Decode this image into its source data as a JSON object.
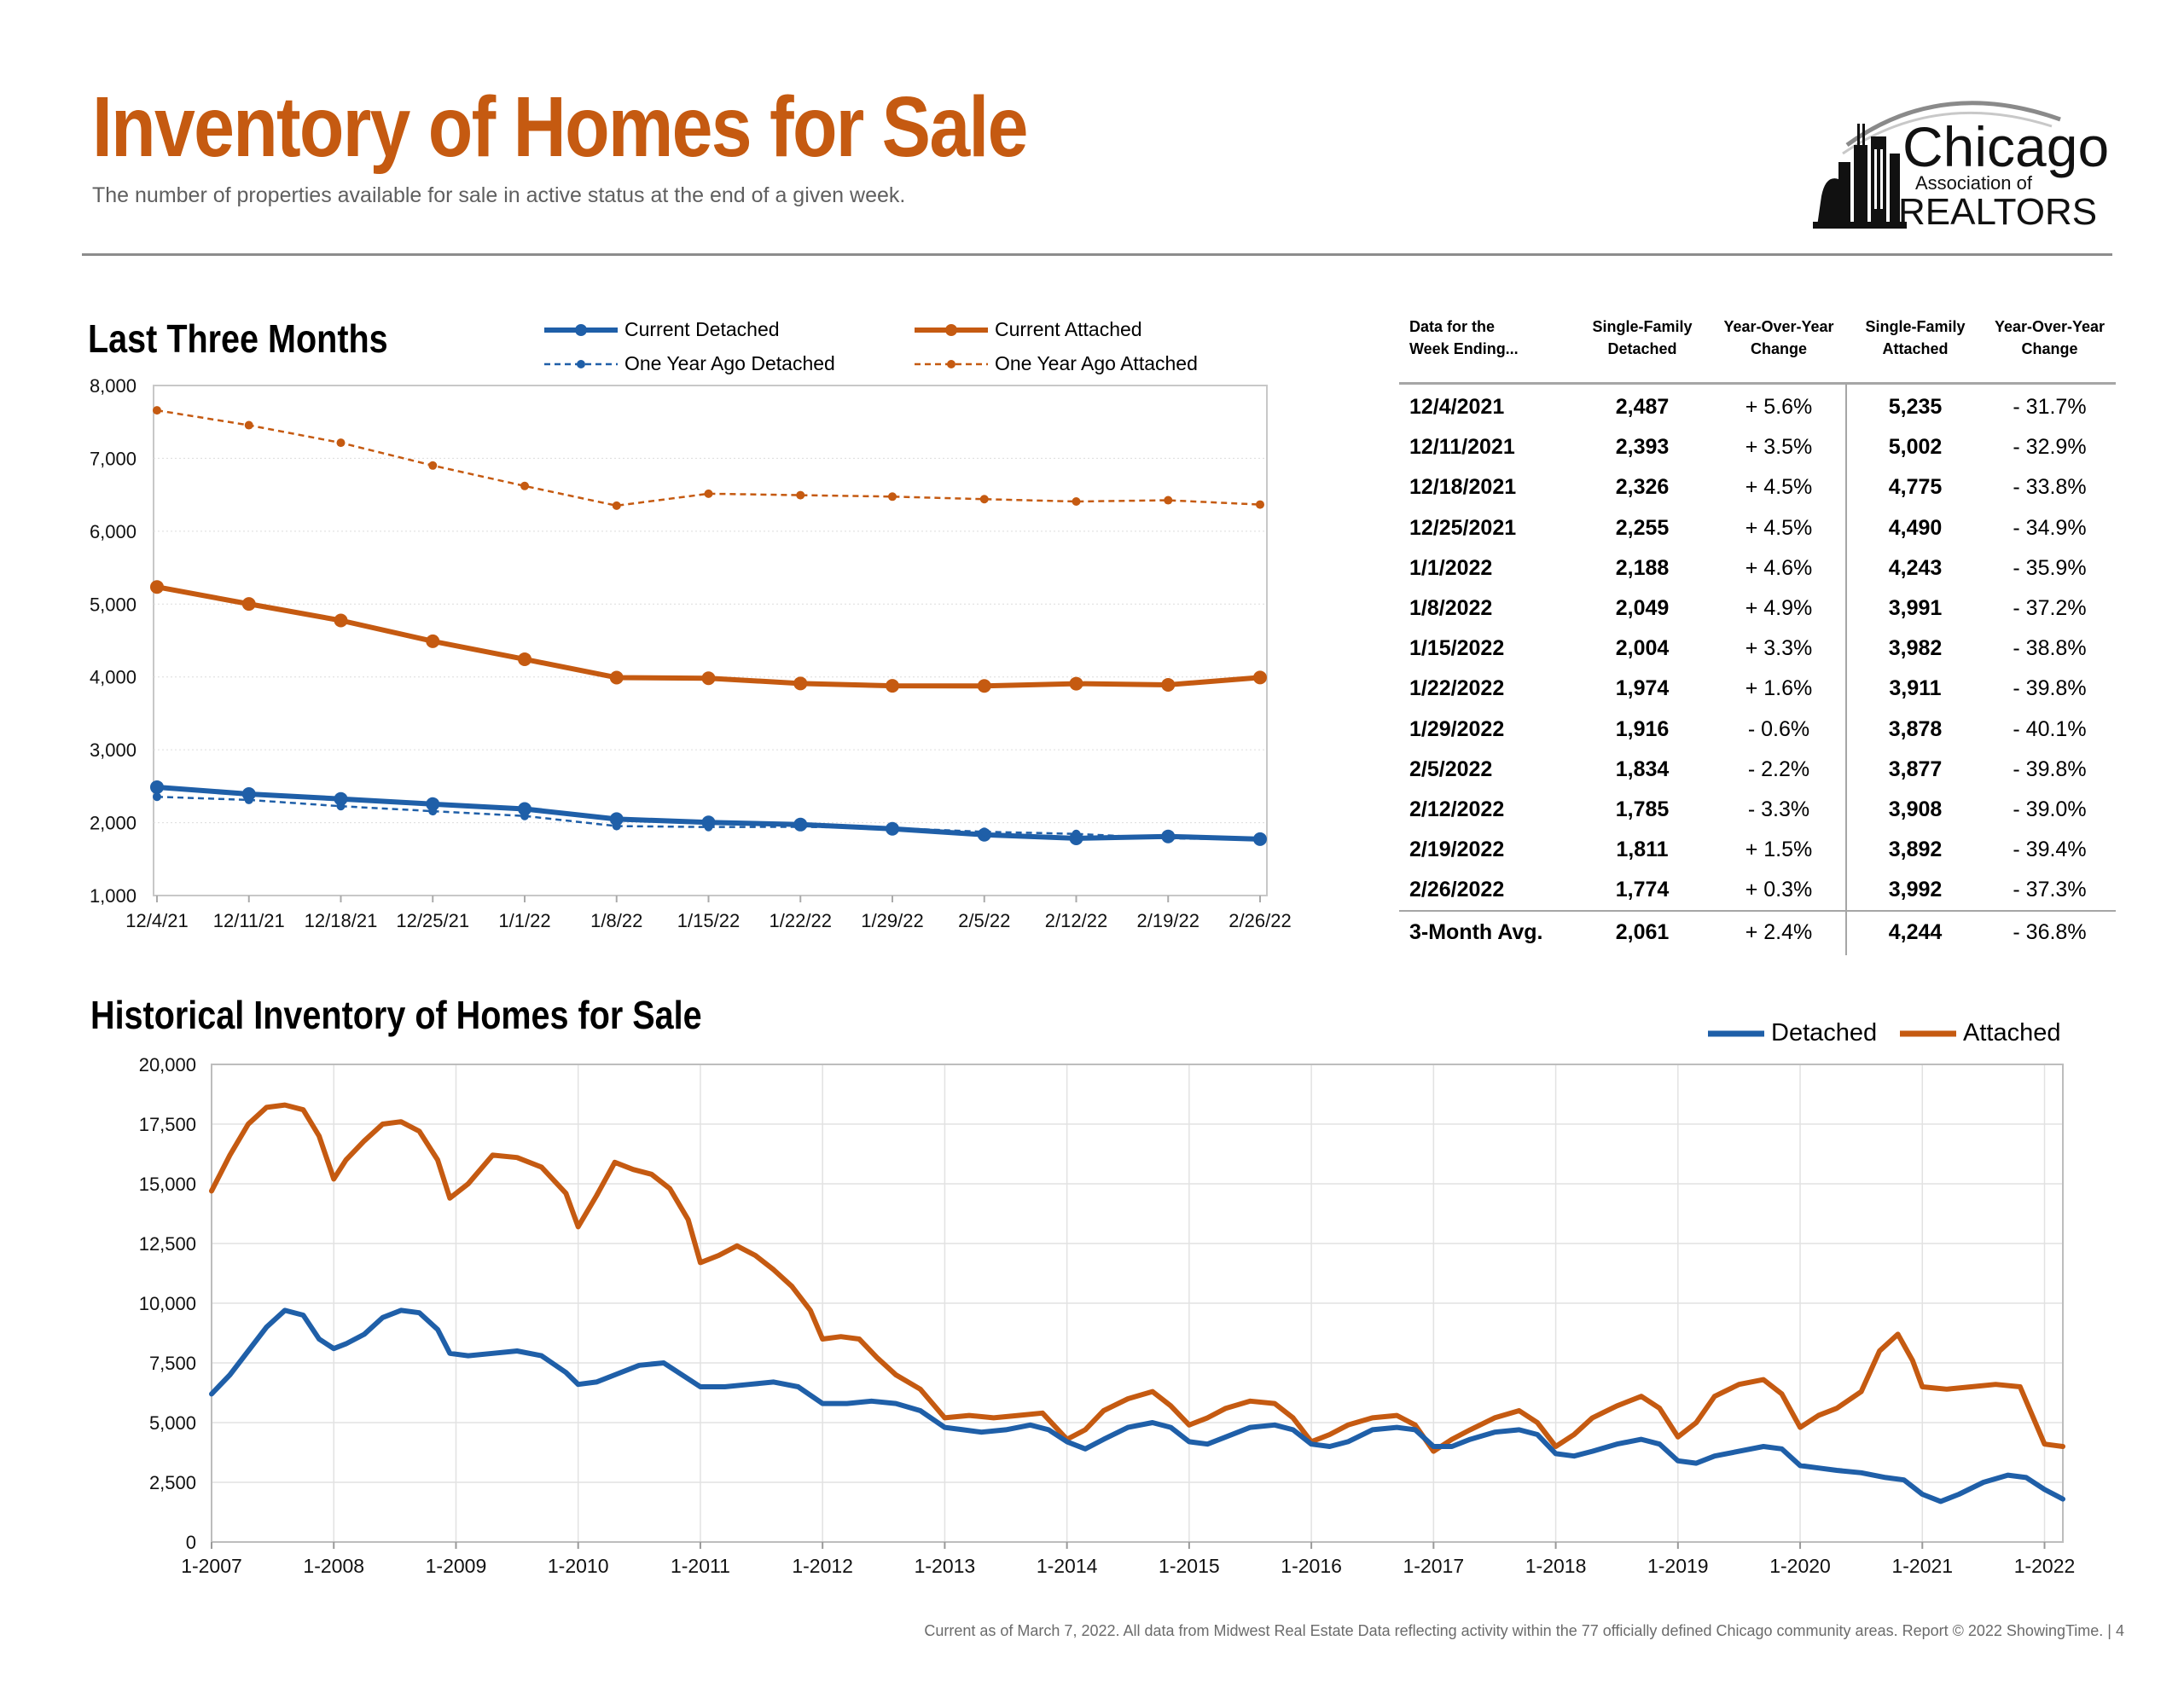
{
  "header": {
    "title": "Inventory of Homes for Sale",
    "subtitle": "The number of properties available for sale in active status at the end of a given week."
  },
  "logo": {
    "name": "Chicago Association of REALTORS",
    "text_main": "Chicago",
    "text_sub": "Association of",
    "text_bottom": "REALTORS"
  },
  "colors": {
    "attached": "#c55a11",
    "detached": "#1f5fa8",
    "title": "#c55a11"
  },
  "charts": {
    "last_three_heading": "Last Three Months",
    "historical_heading": "Historical Inventory of Homes for Sale"
  },
  "chart_data": [
    {
      "type": "line",
      "title": "Last Three Months",
      "categories": [
        "12/4/21",
        "12/11/21",
        "12/18/21",
        "12/25/21",
        "1/1/22",
        "1/8/22",
        "1/15/22",
        "1/22/22",
        "1/29/22",
        "2/5/22",
        "2/12/22",
        "2/19/22",
        "2/26/22"
      ],
      "ylim": [
        1000,
        8000
      ],
      "yticks": [
        "1,000",
        "2,000",
        "3,000",
        "4,000",
        "5,000",
        "6,000",
        "7,000",
        "8,000"
      ],
      "grid": true,
      "legend": "top",
      "series": [
        {
          "name": "Current Detached",
          "style": "solid",
          "color": "#1f5fa8",
          "values": [
            2487,
            2393,
            2326,
            2255,
            2188,
            2049,
            2004,
            1974,
            1916,
            1834,
            1785,
            1811,
            1774
          ]
        },
        {
          "name": "Current Attached",
          "style": "solid",
          "color": "#c55a11",
          "values": [
            5235,
            5002,
            4775,
            4490,
            4243,
            3991,
            3982,
            3911,
            3878,
            3877,
            3908,
            3892,
            3992
          ]
        },
        {
          "name": "One Year Ago Detached",
          "style": "dashed",
          "color": "#1f5fa8",
          "values": [
            2355,
            2312,
            2226,
            2158,
            2092,
            1953,
            1940,
            1943,
            1926,
            1875,
            1846,
            1784,
            1769
          ]
        },
        {
          "name": "One Year Ago Attached",
          "style": "dashed",
          "color": "#c55a11",
          "values": [
            7659,
            7455,
            7214,
            6902,
            6621,
            6351,
            6515,
            6495,
            6475,
            6440,
            6408,
            6425,
            6366
          ]
        }
      ]
    },
    {
      "type": "line",
      "title": "Historical Inventory of Homes for Sale",
      "xticks": [
        "1-2007",
        "1-2008",
        "1-2009",
        "1-2010",
        "1-2011",
        "1-2012",
        "1-2013",
        "1-2014",
        "1-2015",
        "1-2016",
        "1-2017",
        "1-2018",
        "1-2019",
        "1-2020",
        "1-2021",
        "1-2022"
      ],
      "xrange": [
        2007.0,
        2022.15
      ],
      "ylim": [
        0,
        20000
      ],
      "yticks": [
        "0",
        "2,500",
        "5,000",
        "7,500",
        "10,000",
        "12,500",
        "15,000",
        "17,500",
        "20,000"
      ],
      "grid": true,
      "legend": "top-right",
      "series": [
        {
          "name": "Detached",
          "color": "#1f5fa8",
          "points": [
            [
              2007.0,
              6200
            ],
            [
              2007.15,
              7000
            ],
            [
              2007.3,
              8000
            ],
            [
              2007.45,
              9000
            ],
            [
              2007.6,
              9700
            ],
            [
              2007.75,
              9500
            ],
            [
              2007.88,
              8500
            ],
            [
              2008.0,
              8100
            ],
            [
              2008.1,
              8300
            ],
            [
              2008.25,
              8700
            ],
            [
              2008.4,
              9400
            ],
            [
              2008.55,
              9700
            ],
            [
              2008.7,
              9600
            ],
            [
              2008.85,
              8900
            ],
            [
              2008.95,
              7900
            ],
            [
              2009.1,
              7800
            ],
            [
              2009.3,
              7900
            ],
            [
              2009.5,
              8000
            ],
            [
              2009.7,
              7800
            ],
            [
              2009.9,
              7100
            ],
            [
              2010.0,
              6600
            ],
            [
              2010.15,
              6700
            ],
            [
              2010.3,
              7000
            ],
            [
              2010.5,
              7400
            ],
            [
              2010.7,
              7500
            ],
            [
              2010.85,
              7000
            ],
            [
              2011.0,
              6500
            ],
            [
              2011.2,
              6500
            ],
            [
              2011.4,
              6600
            ],
            [
              2011.6,
              6700
            ],
            [
              2011.8,
              6500
            ],
            [
              2012.0,
              5800
            ],
            [
              2012.2,
              5800
            ],
            [
              2012.4,
              5900
            ],
            [
              2012.6,
              5800
            ],
            [
              2012.8,
              5500
            ],
            [
              2013.0,
              4800
            ],
            [
              2013.15,
              4700
            ],
            [
              2013.3,
              4600
            ],
            [
              2013.5,
              4700
            ],
            [
              2013.7,
              4900
            ],
            [
              2013.85,
              4700
            ],
            [
              2014.0,
              4200
            ],
            [
              2014.15,
              3900
            ],
            [
              2014.3,
              4300
            ],
            [
              2014.5,
              4800
            ],
            [
              2014.7,
              5000
            ],
            [
              2014.85,
              4800
            ],
            [
              2015.0,
              4200
            ],
            [
              2015.15,
              4100
            ],
            [
              2015.3,
              4400
            ],
            [
              2015.5,
              4800
            ],
            [
              2015.7,
              4900
            ],
            [
              2015.85,
              4700
            ],
            [
              2016.0,
              4100
            ],
            [
              2016.15,
              4000
            ],
            [
              2016.3,
              4200
            ],
            [
              2016.5,
              4700
            ],
            [
              2016.7,
              4800
            ],
            [
              2016.85,
              4700
            ],
            [
              2017.0,
              4000
            ],
            [
              2017.15,
              4000
            ],
            [
              2017.3,
              4300
            ],
            [
              2017.5,
              4600
            ],
            [
              2017.7,
              4700
            ],
            [
              2017.85,
              4500
            ],
            [
              2018.0,
              3700
            ],
            [
              2018.15,
              3600
            ],
            [
              2018.3,
              3800
            ],
            [
              2018.5,
              4100
            ],
            [
              2018.7,
              4300
            ],
            [
              2018.85,
              4100
            ],
            [
              2019.0,
              3400
            ],
            [
              2019.15,
              3300
            ],
            [
              2019.3,
              3600
            ],
            [
              2019.5,
              3800
            ],
            [
              2019.7,
              4000
            ],
            [
              2019.85,
              3900
            ],
            [
              2020.0,
              3200
            ],
            [
              2020.15,
              3100
            ],
            [
              2020.3,
              3000
            ],
            [
              2020.5,
              2900
            ],
            [
              2020.7,
              2700
            ],
            [
              2020.85,
              2600
            ],
            [
              2021.0,
              2000
            ],
            [
              2021.15,
              1700
            ],
            [
              2021.3,
              2000
            ],
            [
              2021.5,
              2500
            ],
            [
              2021.7,
              2800
            ],
            [
              2021.85,
              2700
            ],
            [
              2022.0,
              2200
            ],
            [
              2022.15,
              1800
            ]
          ]
        },
        {
          "name": "Attached",
          "color": "#c55a11",
          "points": [
            [
              2007.0,
              14700
            ],
            [
              2007.15,
              16200
            ],
            [
              2007.3,
              17500
            ],
            [
              2007.45,
              18200
            ],
            [
              2007.6,
              18300
            ],
            [
              2007.75,
              18100
            ],
            [
              2007.88,
              17000
            ],
            [
              2008.0,
              15200
            ],
            [
              2008.1,
              16000
            ],
            [
              2008.25,
              16800
            ],
            [
              2008.4,
              17500
            ],
            [
              2008.55,
              17600
            ],
            [
              2008.7,
              17200
            ],
            [
              2008.85,
              16000
            ],
            [
              2008.95,
              14400
            ],
            [
              2009.1,
              15000
            ],
            [
              2009.3,
              16200
            ],
            [
              2009.5,
              16100
            ],
            [
              2009.7,
              15700
            ],
            [
              2009.9,
              14600
            ],
            [
              2010.0,
              13200
            ],
            [
              2010.15,
              14500
            ],
            [
              2010.3,
              15900
            ],
            [
              2010.45,
              15600
            ],
            [
              2010.6,
              15400
            ],
            [
              2010.75,
              14800
            ],
            [
              2010.9,
              13500
            ],
            [
              2011.0,
              11700
            ],
            [
              2011.15,
              12000
            ],
            [
              2011.3,
              12400
            ],
            [
              2011.45,
              12000
            ],
            [
              2011.6,
              11400
            ],
            [
              2011.75,
              10700
            ],
            [
              2011.9,
              9700
            ],
            [
              2012.0,
              8500
            ],
            [
              2012.15,
              8600
            ],
            [
              2012.3,
              8500
            ],
            [
              2012.45,
              7700
            ],
            [
              2012.6,
              7000
            ],
            [
              2012.8,
              6400
            ],
            [
              2013.0,
              5200
            ],
            [
              2013.2,
              5300
            ],
            [
              2013.4,
              5200
            ],
            [
              2013.6,
              5300
            ],
            [
              2013.8,
              5400
            ],
            [
              2014.0,
              4300
            ],
            [
              2014.15,
              4700
            ],
            [
              2014.3,
              5500
            ],
            [
              2014.5,
              6000
            ],
            [
              2014.7,
              6300
            ],
            [
              2014.85,
              5700
            ],
            [
              2015.0,
              4900
            ],
            [
              2015.15,
              5200
            ],
            [
              2015.3,
              5600
            ],
            [
              2015.5,
              5900
            ],
            [
              2015.7,
              5800
            ],
            [
              2015.85,
              5200
            ],
            [
              2016.0,
              4200
            ],
            [
              2016.15,
              4500
            ],
            [
              2016.3,
              4900
            ],
            [
              2016.5,
              5200
            ],
            [
              2016.7,
              5300
            ],
            [
              2016.85,
              4900
            ],
            [
              2017.0,
              3800
            ],
            [
              2017.15,
              4300
            ],
            [
              2017.3,
              4700
            ],
            [
              2017.5,
              5200
            ],
            [
              2017.7,
              5500
            ],
            [
              2017.85,
              5000
            ],
            [
              2018.0,
              4000
            ],
            [
              2018.15,
              4500
            ],
            [
              2018.3,
              5200
            ],
            [
              2018.5,
              5700
            ],
            [
              2018.7,
              6100
            ],
            [
              2018.85,
              5600
            ],
            [
              2019.0,
              4400
            ],
            [
              2019.15,
              5000
            ],
            [
              2019.3,
              6100
            ],
            [
              2019.5,
              6600
            ],
            [
              2019.7,
              6800
            ],
            [
              2019.85,
              6200
            ],
            [
              2020.0,
              4800
            ],
            [
              2020.15,
              5300
            ],
            [
              2020.3,
              5600
            ],
            [
              2020.5,
              6300
            ],
            [
              2020.65,
              8000
            ],
            [
              2020.8,
              8700
            ],
            [
              2020.92,
              7600
            ],
            [
              2021.0,
              6500
            ],
            [
              2021.2,
              6400
            ],
            [
              2021.4,
              6500
            ],
            [
              2021.6,
              6600
            ],
            [
              2021.8,
              6500
            ],
            [
              2022.0,
              4100
            ],
            [
              2022.15,
              4000
            ]
          ]
        }
      ]
    }
  ],
  "table": {
    "headers": [
      [
        "Data for the",
        "Week Ending..."
      ],
      [
        "Single-Family",
        "Detached"
      ],
      [
        "Year-Over-Year",
        "Change"
      ],
      [
        "Single-Family",
        "Attached"
      ],
      [
        "Year-Over-Year",
        "Change"
      ]
    ],
    "rows": [
      [
        "12/4/2021",
        "2,487",
        "+ 5.6%",
        "5,235",
        "- 31.7%"
      ],
      [
        "12/11/2021",
        "2,393",
        "+ 3.5%",
        "5,002",
        "- 32.9%"
      ],
      [
        "12/18/2021",
        "2,326",
        "+ 4.5%",
        "4,775",
        "- 33.8%"
      ],
      [
        "12/25/2021",
        "2,255",
        "+ 4.5%",
        "4,490",
        "- 34.9%"
      ],
      [
        "1/1/2022",
        "2,188",
        "+ 4.6%",
        "4,243",
        "- 35.9%"
      ],
      [
        "1/8/2022",
        "2,049",
        "+ 4.9%",
        "3,991",
        "- 37.2%"
      ],
      [
        "1/15/2022",
        "2,004",
        "+ 3.3%",
        "3,982",
        "- 38.8%"
      ],
      [
        "1/22/2022",
        "1,974",
        "+ 1.6%",
        "3,911",
        "- 39.8%"
      ],
      [
        "1/29/2022",
        "1,916",
        "- 0.6%",
        "3,878",
        "- 40.1%"
      ],
      [
        "2/5/2022",
        "1,834",
        "- 2.2%",
        "3,877",
        "- 39.8%"
      ],
      [
        "2/12/2022",
        "1,785",
        "- 3.3%",
        "3,908",
        "- 39.0%"
      ],
      [
        "2/19/2022",
        "1,811",
        "+ 1.5%",
        "3,892",
        "- 39.4%"
      ],
      [
        "2/26/2022",
        "1,774",
        "+ 0.3%",
        "3,992",
        "- 37.3%"
      ]
    ],
    "summary": [
      "3-Month Avg.",
      "2,061",
      "+ 2.4%",
      "4,244",
      "- 36.8%"
    ]
  },
  "footer": {
    "text": "Current as of March 7, 2022. All data from Midwest Real Estate Data reflecting activity within the 77 officially defined Chicago community areas. Report © 2022 ShowingTime.  |  4"
  }
}
